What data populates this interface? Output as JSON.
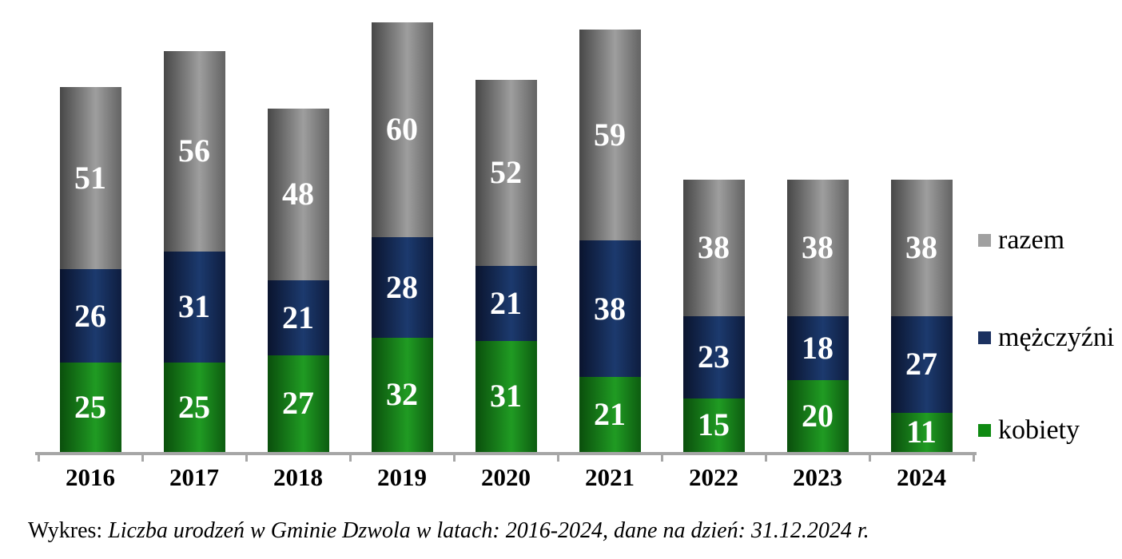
{
  "chart_data": {
    "type": "bar",
    "stacked": true,
    "orientation": "vertical",
    "grid": false,
    "value_labels": "inside-center-white",
    "legend_position": "right",
    "categories": [
      "2016",
      "2017",
      "2018",
      "2019",
      "2020",
      "2021",
      "2022",
      "2023",
      "2024"
    ],
    "series": [
      {
        "name": "kobiety",
        "values": [
          25,
          25,
          27,
          32,
          31,
          21,
          15,
          20,
          11
        ],
        "swatch": "#0f8a12",
        "gradient": [
          "#0a4f0c",
          "#209b23",
          "#0d5c10"
        ]
      },
      {
        "name": "mężczyźni",
        "values": [
          26,
          31,
          21,
          28,
          21,
          38,
          23,
          18,
          27
        ],
        "swatch": "#1b3160",
        "gradient": [
          "#0a142e",
          "#1c3a6e",
          "#0e1d3f"
        ]
      },
      {
        "name": "razem",
        "values": [
          51,
          56,
          48,
          60,
          52,
          59,
          38,
          38,
          38
        ],
        "swatch": "#a0a0a0",
        "gradient": [
          "#474747",
          "#9e9e9e",
          "#636363"
        ]
      }
    ],
    "value_label_color": "#ffffff",
    "axis_color": "#a6a6a6"
  },
  "legend": {
    "items": [
      {
        "label": "razem",
        "swatch": "#a0a0a0"
      },
      {
        "label": "mężczyźni",
        "swatch": "#1b3160"
      },
      {
        "label": "kobiety",
        "swatch": "#0f8a12"
      }
    ]
  },
  "caption": {
    "prefix": "Wykres:",
    "italic_text": "Liczba urodzeń w Gminie Dzwola w latach: 2016-2024, dane na dzień: 31.12.2024 r."
  }
}
